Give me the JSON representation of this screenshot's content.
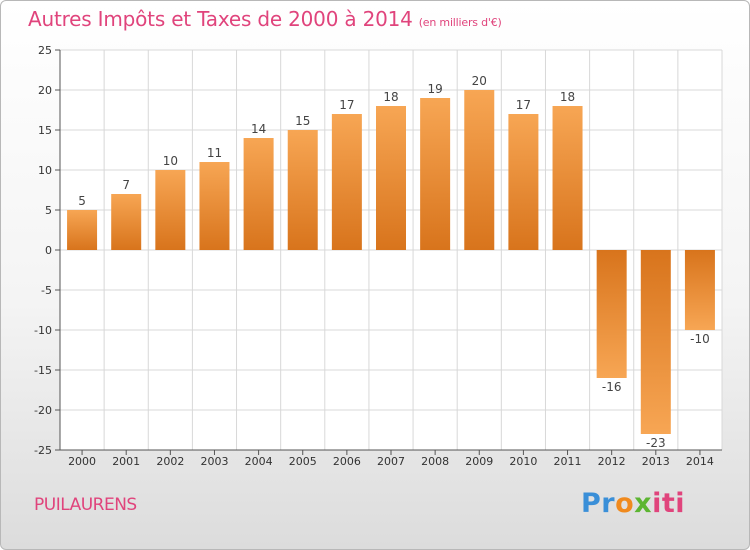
{
  "title": "Autres Impôts et Taxes de 2000 à 2014",
  "subtitle": "(en milliers d'€)",
  "commune": "PUILAURENS",
  "brand": {
    "p1": "Pr",
    "p2": "o",
    "p3": "x",
    "p4": "iti"
  },
  "colors": {
    "bar_light": "#f7a654",
    "bar_dark": "#d8741c",
    "grid": "#d8d8d8",
    "accent": "#e0447c"
  },
  "chart_data": {
    "type": "bar",
    "categories": [
      "2000",
      "2001",
      "2002",
      "2003",
      "2004",
      "2005",
      "2006",
      "2007",
      "2008",
      "2009",
      "2010",
      "2011",
      "2012",
      "2013",
      "2014"
    ],
    "values": [
      5,
      7,
      10,
      11,
      14,
      15,
      17,
      18,
      19,
      20,
      17,
      18,
      -16,
      -23,
      -10
    ],
    "labels": [
      "5",
      "7",
      "10",
      "11",
      "14",
      "15",
      "17",
      "18",
      "19",
      "20",
      "17",
      "18",
      "-16",
      "-23",
      "-10"
    ],
    "yticks": [
      25,
      20,
      15,
      10,
      5,
      0,
      -5,
      -10,
      -15,
      -20,
      -25
    ],
    "ylim": [
      -25,
      25
    ],
    "grid": true
  }
}
